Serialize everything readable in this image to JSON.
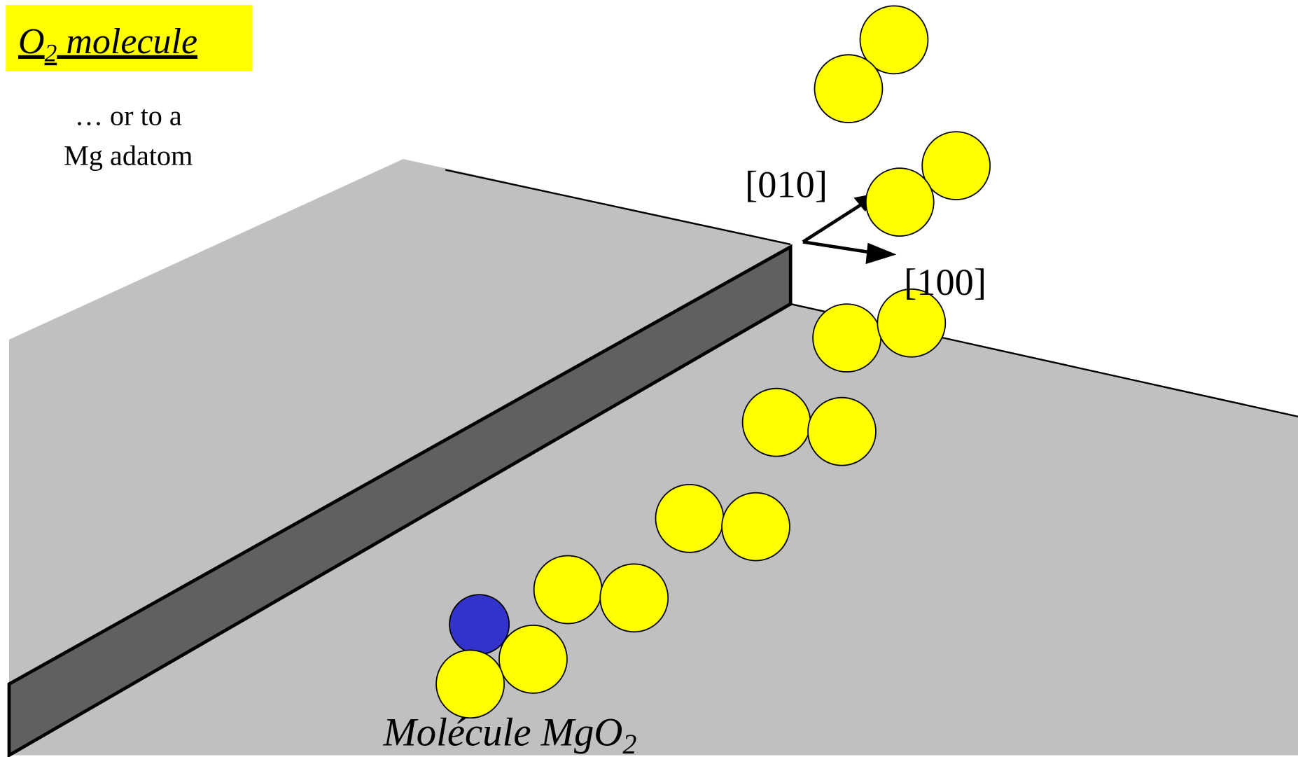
{
  "title": {
    "main": "O",
    "sub": "2",
    "rest": " molecule"
  },
  "note": {
    "line1": "… or to a",
    "line2": "Mg adatom"
  },
  "axes": {
    "a": "[010]",
    "b": "[100]"
  },
  "caption": {
    "main": "Molécule MgO",
    "sub": "2"
  }
}
